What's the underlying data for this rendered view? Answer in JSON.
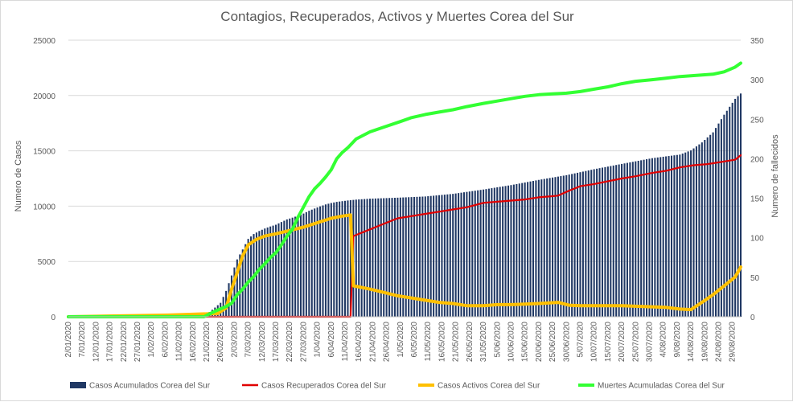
{
  "chart_data": {
    "type": "bar+line",
    "title": "Contagios, Recuperados, Activos y Muertes Corea del Sur",
    "ylabel": "Numero  de Casos",
    "y2label": "Numero  de fallecidos",
    "ylim": [
      0,
      25000
    ],
    "y2lim": [
      0,
      350
    ],
    "yticks": [
      0,
      5000,
      10000,
      15000,
      20000,
      25000
    ],
    "y2ticks": [
      0,
      50,
      100,
      150,
      200,
      250,
      300,
      350
    ],
    "grid": true,
    "legend_position": "bottom",
    "x_start_date": "2020-01-02",
    "x_end_date": "2020-09-01",
    "x_tick_labels": [
      "2/01/2020",
      "7/01/2020",
      "12/01/2020",
      "17/01/2020",
      "22/01/2020",
      "27/01/2020",
      "1/02/2020",
      "6/02/2020",
      "11/02/2020",
      "16/02/2020",
      "21/02/2020",
      "26/02/2020",
      "2/03/2020",
      "7/03/2020",
      "12/03/2020",
      "17/03/2020",
      "22/03/2020",
      "27/03/2020",
      "1/04/2020",
      "6/04/2020",
      "11/04/2020",
      "16/04/2020",
      "21/04/2020",
      "26/04/2020",
      "1/05/2020",
      "6/05/2020",
      "11/05/2020",
      "16/05/2020",
      "21/05/2020",
      "26/05/2020",
      "31/05/2020",
      "5/06/2020",
      "10/06/2020",
      "15/06/2020",
      "20/06/2020",
      "25/06/2020",
      "30/06/2020",
      "5/07/2020",
      "10/07/2020",
      "15/07/2020",
      "20/07/2020",
      "25/07/2020",
      "30/07/2020",
      "4/08/2020",
      "9/08/2020",
      "14/08/2020",
      "19/08/2020",
      "24/08/2020",
      "29/08/2020"
    ],
    "series": [
      {
        "name": "Casos Acumulados Corea del Sur",
        "type": "bar",
        "axis": "left",
        "color": "#203864",
        "points": [
          [
            "2020-01-02",
            0
          ],
          [
            "2020-02-18",
            31
          ],
          [
            "2020-02-20",
            104
          ],
          [
            "2020-02-22",
            433
          ],
          [
            "2020-02-24",
            833
          ],
          [
            "2020-02-26",
            1261
          ],
          [
            "2020-02-28",
            2337
          ],
          [
            "2020-03-01",
            3736
          ],
          [
            "2020-03-03",
            5186
          ],
          [
            "2020-03-05",
            6088
          ],
          [
            "2020-03-07",
            7041
          ],
          [
            "2020-03-09",
            7478
          ],
          [
            "2020-03-11",
            7755
          ],
          [
            "2020-03-13",
            7979
          ],
          [
            "2020-03-15",
            8162
          ],
          [
            "2020-03-17",
            8320
          ],
          [
            "2020-03-19",
            8565
          ],
          [
            "2020-03-21",
            8799
          ],
          [
            "2020-03-23",
            8961
          ],
          [
            "2020-03-25",
            9137
          ],
          [
            "2020-03-27",
            9332
          ],
          [
            "2020-03-29",
            9583
          ],
          [
            "2020-03-31",
            9786
          ],
          [
            "2020-04-02",
            9976
          ],
          [
            "2020-04-04",
            10156
          ],
          [
            "2020-04-06",
            10284
          ],
          [
            "2020-04-08",
            10384
          ],
          [
            "2020-04-10",
            10450
          ],
          [
            "2020-04-12",
            10512
          ],
          [
            "2020-04-15",
            10591
          ],
          [
            "2020-04-20",
            10674
          ],
          [
            "2020-04-30",
            10765
          ],
          [
            "2020-05-10",
            10874
          ],
          [
            "2020-05-20",
            11110
          ],
          [
            "2020-05-31",
            11503
          ],
          [
            "2020-06-10",
            11902
          ],
          [
            "2020-06-20",
            12373
          ],
          [
            "2020-06-30",
            12800
          ],
          [
            "2020-07-10",
            13338
          ],
          [
            "2020-07-20",
            13816
          ],
          [
            "2020-07-31",
            14336
          ],
          [
            "2020-08-10",
            14660
          ],
          [
            "2020-08-14",
            15039
          ],
          [
            "2020-08-18",
            15761
          ],
          [
            "2020-08-22",
            16670
          ],
          [
            "2020-08-26",
            18265
          ],
          [
            "2020-08-30",
            19699
          ],
          [
            "2020-09-01",
            20182
          ]
        ]
      },
      {
        "name": "Casos Recuperados Corea del Sur",
        "type": "line",
        "axis": "left",
        "color": "#e00000",
        "points": [
          [
            "2020-01-02",
            0
          ],
          [
            "2020-04-13",
            0
          ],
          [
            "2020-04-14",
            7300
          ],
          [
            "2020-04-20",
            7900
          ],
          [
            "2020-04-25",
            8400
          ],
          [
            "2020-04-30",
            8900
          ],
          [
            "2020-05-05",
            9100
          ],
          [
            "2020-05-10",
            9300
          ],
          [
            "2020-05-15",
            9500
          ],
          [
            "2020-05-20",
            9700
          ],
          [
            "2020-05-25",
            9900
          ],
          [
            "2020-05-31",
            10300
          ],
          [
            "2020-06-05",
            10400
          ],
          [
            "2020-06-10",
            10500
          ],
          [
            "2020-06-15",
            10600
          ],
          [
            "2020-06-20",
            10800
          ],
          [
            "2020-06-25",
            10900
          ],
          [
            "2020-06-27",
            10950
          ],
          [
            "2020-07-01",
            11400
          ],
          [
            "2020-07-05",
            11800
          ],
          [
            "2020-07-10",
            12000
          ],
          [
            "2020-07-15",
            12250
          ],
          [
            "2020-07-20",
            12500
          ],
          [
            "2020-07-25",
            12700
          ],
          [
            "2020-07-31",
            13000
          ],
          [
            "2020-08-05",
            13200
          ],
          [
            "2020-08-10",
            13500
          ],
          [
            "2020-08-15",
            13700
          ],
          [
            "2020-08-20",
            13800
          ],
          [
            "2020-08-25",
            14000
          ],
          [
            "2020-08-30",
            14200
          ],
          [
            "2020-09-01",
            14600
          ]
        ]
      },
      {
        "name": "Casos Activos Corea del Sur",
        "type": "line",
        "axis": "left",
        "color": "#ffc000",
        "points": [
          [
            "2020-01-02",
            0
          ],
          [
            "2020-02-07",
            150
          ],
          [
            "2020-02-25",
            300
          ],
          [
            "2020-02-28",
            800
          ],
          [
            "2020-03-01",
            2500
          ],
          [
            "2020-03-03",
            4000
          ],
          [
            "2020-03-05",
            5500
          ],
          [
            "2020-03-07",
            6500
          ],
          [
            "2020-03-10",
            7000
          ],
          [
            "2020-03-13",
            7300
          ],
          [
            "2020-03-17",
            7500
          ],
          [
            "2020-03-22",
            7800
          ],
          [
            "2020-03-27",
            8100
          ],
          [
            "2020-04-01",
            8500
          ],
          [
            "2020-04-06",
            8900
          ],
          [
            "2020-04-10",
            9100
          ],
          [
            "2020-04-13",
            9200
          ],
          [
            "2020-04-14",
            2800
          ],
          [
            "2020-04-20",
            2500
          ],
          [
            "2020-04-25",
            2200
          ],
          [
            "2020-04-30",
            1900
          ],
          [
            "2020-05-05",
            1700
          ],
          [
            "2020-05-10",
            1500
          ],
          [
            "2020-05-15",
            1300
          ],
          [
            "2020-05-20",
            1200
          ],
          [
            "2020-05-25",
            1000
          ],
          [
            "2020-05-31",
            1000
          ],
          [
            "2020-06-05",
            1100
          ],
          [
            "2020-06-10",
            1100
          ],
          [
            "2020-06-15",
            1150
          ],
          [
            "2020-06-20",
            1200
          ],
          [
            "2020-06-27",
            1300
          ],
          [
            "2020-07-01",
            1050
          ],
          [
            "2020-07-05",
            1000
          ],
          [
            "2020-07-10",
            1000
          ],
          [
            "2020-07-15",
            1000
          ],
          [
            "2020-07-20",
            1000
          ],
          [
            "2020-07-25",
            950
          ],
          [
            "2020-07-31",
            900
          ],
          [
            "2020-08-05",
            850
          ],
          [
            "2020-08-10",
            700
          ],
          [
            "2020-08-14",
            650
          ],
          [
            "2020-08-18",
            1300
          ],
          [
            "2020-08-22",
            2000
          ],
          [
            "2020-08-26",
            2800
          ],
          [
            "2020-08-30",
            3600
          ],
          [
            "2020-09-01",
            4500
          ]
        ]
      },
      {
        "name": "Muertes Acumuladas Corea del Sur",
        "type": "line",
        "axis": "right",
        "color": "#33ff33",
        "points": [
          [
            "2020-01-02",
            0
          ],
          [
            "2020-02-20",
            0
          ],
          [
            "2020-02-24",
            7
          ],
          [
            "2020-02-28",
            13
          ],
          [
            "2020-03-01",
            17
          ],
          [
            "2020-03-03",
            28
          ],
          [
            "2020-03-05",
            35
          ],
          [
            "2020-03-07",
            44
          ],
          [
            "2020-03-09",
            51
          ],
          [
            "2020-03-11",
            60
          ],
          [
            "2020-03-13",
            67
          ],
          [
            "2020-03-15",
            75
          ],
          [
            "2020-03-17",
            81
          ],
          [
            "2020-03-19",
            91
          ],
          [
            "2020-03-21",
            102
          ],
          [
            "2020-03-23",
            111
          ],
          [
            "2020-03-25",
            126
          ],
          [
            "2020-03-27",
            139
          ],
          [
            "2020-03-29",
            152
          ],
          [
            "2020-03-31",
            162
          ],
          [
            "2020-04-02",
            169
          ],
          [
            "2020-04-04",
            177
          ],
          [
            "2020-04-06",
            186
          ],
          [
            "2020-04-08",
            200
          ],
          [
            "2020-04-10",
            208
          ],
          [
            "2020-04-12",
            214
          ],
          [
            "2020-04-15",
            225
          ],
          [
            "2020-04-20",
            234
          ],
          [
            "2020-04-25",
            240
          ],
          [
            "2020-05-01",
            247
          ],
          [
            "2020-05-05",
            252
          ],
          [
            "2020-05-10",
            256
          ],
          [
            "2020-05-15",
            259
          ],
          [
            "2020-05-20",
            262
          ],
          [
            "2020-05-25",
            266
          ],
          [
            "2020-05-31",
            270
          ],
          [
            "2020-06-05",
            273
          ],
          [
            "2020-06-10",
            276
          ],
          [
            "2020-06-15",
            279
          ],
          [
            "2020-06-20",
            281
          ],
          [
            "2020-06-25",
            282
          ],
          [
            "2020-06-30",
            283
          ],
          [
            "2020-07-05",
            285
          ],
          [
            "2020-07-10",
            288
          ],
          [
            "2020-07-15",
            291
          ],
          [
            "2020-07-20",
            295
          ],
          [
            "2020-07-25",
            298
          ],
          [
            "2020-07-31",
            300
          ],
          [
            "2020-08-05",
            302
          ],
          [
            "2020-08-10",
            304
          ],
          [
            "2020-08-14",
            305
          ],
          [
            "2020-08-18",
            306
          ],
          [
            "2020-08-22",
            307
          ],
          [
            "2020-08-26",
            310
          ],
          [
            "2020-08-30",
            316
          ],
          [
            "2020-09-01",
            321
          ]
        ]
      }
    ]
  }
}
